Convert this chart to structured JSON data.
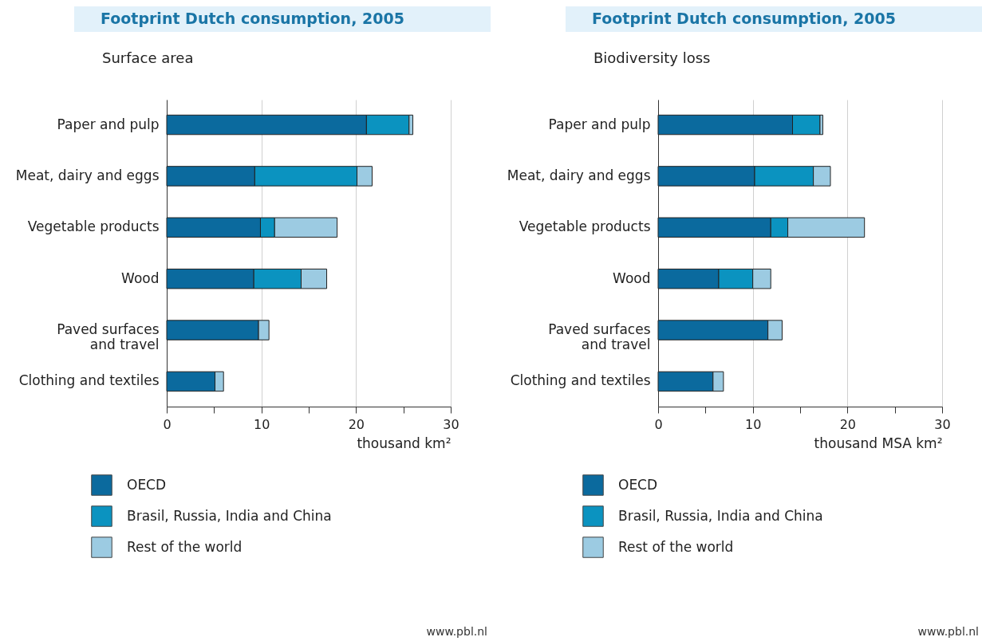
{
  "chart_data": [
    {
      "type": "bar",
      "orientation": "horizontal",
      "stacked": true,
      "title": "Footprint Dutch consumption, 2005",
      "subtitle": "Surface area",
      "xlabel": "thousand km²",
      "categories": [
        "Paper and pulp",
        "Meat, dairy and eggs",
        "Vegetable products",
        "Wood",
        "Paved  surfaces and travel",
        "Clothing and textiles"
      ],
      "series": [
        {
          "name": "OECD",
          "color": "#0b6a9e",
          "values": [
            21.1,
            9.3,
            9.9,
            9.2,
            9.7,
            5.1
          ]
        },
        {
          "name": "Brasil, Russia, India and China",
          "color": "#0b93c0",
          "values": [
            4.5,
            10.8,
            1.5,
            5.0,
            null,
            null
          ]
        },
        {
          "name": "Rest of the world",
          "color": "#9ccbe2",
          "values": [
            0.4,
            1.6,
            6.6,
            2.7,
            1.1,
            0.9
          ]
        }
      ],
      "xlim": [
        0,
        30
      ],
      "xticks": [
        0,
        {
          "value": 5,
          "label": null
        },
        10,
        {
          "value": 15,
          "label": null
        },
        20,
        {
          "value": 25,
          "label": null
        },
        30
      ],
      "grid": "x",
      "legend": "bottom",
      "annotations": [
        "www.pbl.nl"
      ]
    },
    {
      "type": "bar",
      "orientation": "horizontal",
      "stacked": true,
      "title": "Footprint Dutch consumption, 2005",
      "subtitle": "Biodiversity loss",
      "xlabel": "thousand MSA km²",
      "categories": [
        "Paper and pulp",
        "Meat, dairy and eggs",
        "Vegetable products",
        "Wood",
        "Paved  surfaces and travel",
        "Clothing and textiles"
      ],
      "series": [
        {
          "name": "OECD",
          "color": "#0b6a9e",
          "values": [
            14.2,
            10.2,
            11.9,
            6.4,
            11.6,
            5.8
          ]
        },
        {
          "name": "Brasil, Russia, India and China",
          "color": "#0b93c0",
          "values": [
            2.9,
            6.2,
            1.8,
            3.6,
            null,
            null
          ]
        },
        {
          "name": "Rest of the world",
          "color": "#9ccbe2",
          "values": [
            0.3,
            1.8,
            8.1,
            1.9,
            1.5,
            1.1
          ]
        }
      ],
      "xlim": [
        0,
        30
      ],
      "xticks": [
        0,
        {
          "value": 5,
          "label": null
        },
        10,
        {
          "value": 15,
          "label": null
        },
        20,
        {
          "value": 25,
          "label": null
        },
        30
      ],
      "grid": "x",
      "legend": "bottom",
      "annotations": [
        "www.pbl.nl"
      ]
    }
  ]
}
